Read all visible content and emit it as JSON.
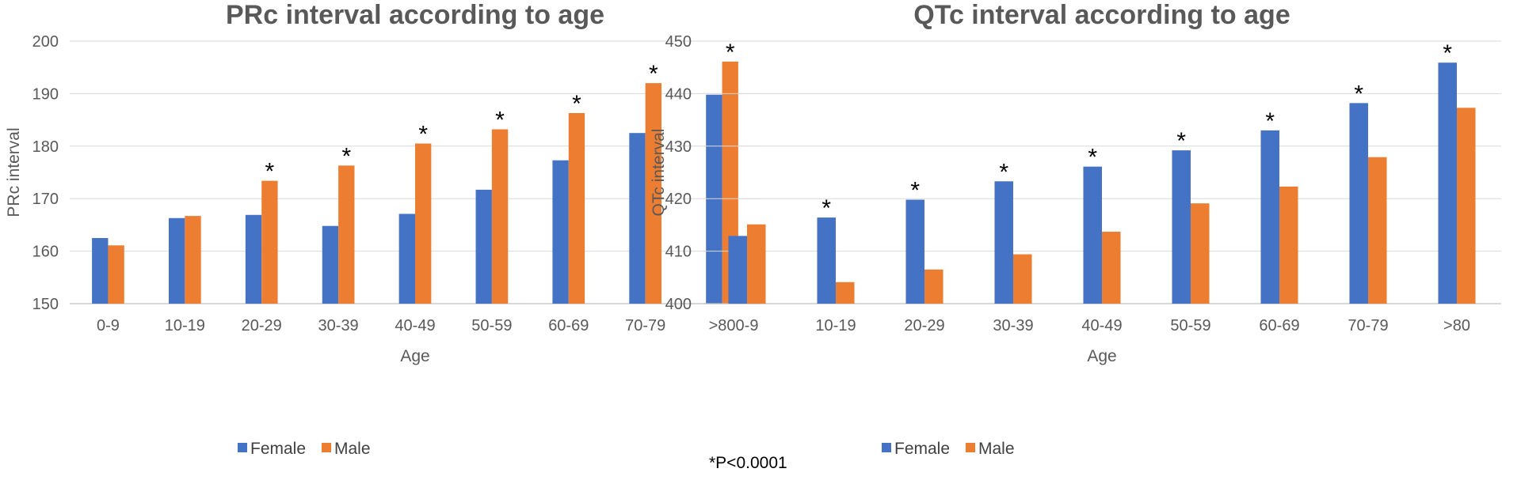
{
  "colors": {
    "female": "#4472C4",
    "male": "#ED7D31"
  },
  "footnote": "*P<0.0001",
  "chart_data": [
    {
      "type": "bar",
      "title": "PRc interval according to age",
      "xlabel": "Age",
      "ylabel": "PRc interval",
      "ylim": [
        150,
        200
      ],
      "yticks": [
        150,
        160,
        170,
        180,
        190,
        200
      ],
      "categories": [
        "0-9",
        "10-19",
        "20-29",
        "30-39",
        "40-49",
        "50-59",
        "60-69",
        "70-79",
        ">80"
      ],
      "series": [
        {
          "name": "Female",
          "color": "#4472C4",
          "values": [
            162.5,
            166.3,
            166.9,
            164.8,
            167.1,
            171.7,
            177.3,
            182.5,
            189.8
          ]
        },
        {
          "name": "Male",
          "color": "#ED7D31",
          "values": [
            161.1,
            166.7,
            173.4,
            176.3,
            180.5,
            183.2,
            186.3,
            192.0,
            196.1
          ]
        }
      ],
      "annotations": [
        {
          "text": "*",
          "category": "20-29",
          "above": "Male"
        },
        {
          "text": "*",
          "category": "30-39",
          "above": "Male"
        },
        {
          "text": "*",
          "category": "40-49",
          "above": "Male"
        },
        {
          "text": "*",
          "category": "50-59",
          "above": "Male"
        },
        {
          "text": "*",
          "category": "60-69",
          "above": "Male"
        },
        {
          "text": "*",
          "category": "70-79",
          "above": "Male"
        },
        {
          "text": "*",
          "category": ">80",
          "above": "Male"
        }
      ],
      "legend": "bottom",
      "grid": true
    },
    {
      "type": "bar",
      "title": "QTc interval according to age",
      "xlabel": "Age",
      "ylabel": "QTc interval",
      "ylim": [
        400,
        450
      ],
      "yticks": [
        400,
        410,
        420,
        430,
        440,
        450
      ],
      "categories": [
        "0-9",
        "10-19",
        "20-29",
        "30-39",
        "40-49",
        "50-59",
        "60-69",
        "70-79",
        ">80"
      ],
      "series": [
        {
          "name": "Female",
          "color": "#4472C4",
          "values": [
            412.9,
            416.4,
            419.8,
            423.3,
            426.1,
            429.2,
            433.0,
            438.2,
            445.9
          ]
        },
        {
          "name": "Male",
          "color": "#ED7D31",
          "values": [
            415.1,
            404.1,
            406.5,
            409.4,
            413.7,
            419.1,
            422.3,
            427.9,
            437.3
          ]
        }
      ],
      "annotations": [
        {
          "text": "*",
          "category": "10-19",
          "above": "Female"
        },
        {
          "text": "*",
          "category": "20-29",
          "above": "Female"
        },
        {
          "text": "*",
          "category": "30-39",
          "above": "Female"
        },
        {
          "text": "*",
          "category": "40-49",
          "above": "Female"
        },
        {
          "text": "*",
          "category": "50-59",
          "above": "Female"
        },
        {
          "text": "*",
          "category": "60-69",
          "above": "Female"
        },
        {
          "text": "*",
          "category": "70-79",
          "above": "Female"
        },
        {
          "text": "*",
          "category": ">80",
          "above": "Female"
        }
      ],
      "legend": "bottom",
      "grid": true
    }
  ]
}
